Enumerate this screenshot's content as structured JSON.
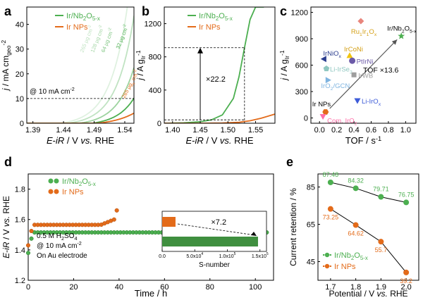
{
  "panel_labels": [
    "a",
    "b",
    "c",
    "d",
    "e"
  ],
  "colors": {
    "green": "#4caf50",
    "orange": "#e36b1a",
    "black": "#000000",
    "purple": "#4b2b8f",
    "gold": "#f1c40f",
    "pink": "#ff6fa8"
  },
  "chart_data": [
    {
      "panel": "a",
      "type": "line",
      "xlabel": "E-iR / V vs. RHE",
      "ylabel": "j / mA cm_geo^-2",
      "xlim": [
        1.38,
        1.555
      ],
      "ylim": [
        0,
        47
      ],
      "xticks": [
        "1.39",
        "1.44",
        "1.49",
        "1.54"
      ],
      "yticks": [
        "0",
        "10",
        "20",
        "30",
        "40"
      ],
      "legend": [
        "Ir/Nb2O5-x",
        "Ir NPs"
      ],
      "annotation": "@ 10 mA cm-2",
      "reference_line_y": 10,
      "curve_labels": [
        "265 µg cm-2",
        "128 µg cm-2",
        "64 µg cm-2",
        "32 µg cm-2",
        "265 µg_Ir cm-2"
      ],
      "series": [
        {
          "name": "Ir/Nb2O5-x",
          "onset": 1.435,
          "tau": 0.0282,
          "shade": 0.18
        },
        {
          "name": "Ir/Nb2O5-x",
          "onset": 1.448,
          "tau": 0.0282,
          "shade": 0.35
        },
        {
          "name": "Ir/Nb2O5-x",
          "onset": 1.466,
          "tau": 0.0282,
          "shade": 0.55
        },
        {
          "name": "Ir/Nb2O5-x",
          "onset": 1.487,
          "tau": 0.0282,
          "shade": 1.0
        },
        {
          "name": "Ir NPs",
          "onset": 1.496,
          "tau": 0.0362
        }
      ]
    },
    {
      "panel": "b",
      "type": "line",
      "xlabel": "E-iR / V vs. RHE",
      "ylabel": "j / A g_Ir^-1",
      "xlim": [
        1.385,
        1.585
      ],
      "ylim": [
        0,
        1400
      ],
      "xticks": [
        "1.40",
        "1.45",
        "1.50",
        "1.55"
      ],
      "yticks": [
        "0",
        "400",
        "800",
        "1200"
      ],
      "legend": [
        "Ir/Nb2O5-x",
        "Ir NPs"
      ],
      "annotation": "×22.2",
      "marker": {
        "x": 1.53,
        "y_low": 41,
        "y_high": 910
      },
      "series": [
        {
          "name": "Ir/Nb2O5-x",
          "x": [
            1.385,
            1.42,
            1.45,
            1.47,
            1.49,
            1.51,
            1.52,
            1.53,
            1.54,
            1.55,
            1.557,
            1.565
          ],
          "y": [
            0,
            5,
            18,
            40,
            100,
            300,
            560,
            910,
            1250,
            1400,
            1400,
            1400
          ]
        },
        {
          "name": "Ir NPs",
          "x": [
            1.385,
            1.45,
            1.49,
            1.52,
            1.54,
            1.56,
            1.585
          ],
          "y": [
            0,
            0,
            3,
            12,
            30,
            60,
            110
          ]
        }
      ]
    },
    {
      "panel": "c",
      "type": "scatter",
      "xlabel": "TOF / s^-1",
      "ylabel": "j / A g_Ir^-1",
      "xlim": [
        -0.1,
        1.12
      ],
      "ylim": [
        -60,
        1260
      ],
      "xticks": [
        "0.0",
        "0.2",
        "0.4",
        "0.6",
        "0.8",
        "1.0"
      ],
      "yticks": [
        "0",
        "300",
        "600",
        "900",
        "1200"
      ],
      "annotation": "TOF ×13.6",
      "points": [
        {
          "label": "Ru1Ir1Ox",
          "x": 0.48,
          "y": 1100,
          "shape": "diamond",
          "color": "#e8857c"
        },
        {
          "label": "Ir/Nb2O5-x",
          "x": 0.95,
          "y": 930,
          "shape": "star",
          "color": "#4caf50"
        },
        {
          "label": "IrCoNi",
          "x": 0.35,
          "y": 710,
          "shape": "triangle-up",
          "color": "#f1c40f"
        },
        {
          "label": "IrNiOx",
          "x": 0.05,
          "y": 670,
          "shape": "triangle-left",
          "color": "#2c3e8f"
        },
        {
          "label": "PtIrNi",
          "x": 0.38,
          "y": 650,
          "shape": "circle",
          "color": "#6c5aa8"
        },
        {
          "label": "Li-IrSe2",
          "x": 0.08,
          "y": 560,
          "shape": "pentagon",
          "color": "#8fc7c0"
        },
        {
          "label": "IrWB",
          "x": 0.4,
          "y": 490,
          "shape": "square",
          "color": "#9e9e9e"
        },
        {
          "label": "IrO2/GCN",
          "x": 0.1,
          "y": 430,
          "shape": "triangle-right",
          "color": "#7fb4e0"
        },
        {
          "label": "Li-IrOx",
          "x": 0.44,
          "y": 195,
          "shape": "triangle-down",
          "color": "#3d5bd8"
        },
        {
          "label": "Ir NPs",
          "x": 0.07,
          "y": 68,
          "shape": "hexagon",
          "color": "#e36b1a"
        },
        {
          "label": "Com. IrO2",
          "x": 0.04,
          "y": 15,
          "shape": "triangle-down",
          "color": "#ff6fa8"
        }
      ]
    },
    {
      "panel": "d",
      "type": "scatter",
      "xlabel": "Time / h",
      "ylabel": "E-iR / V vs. RHE",
      "xlim": [
        0,
        108
      ],
      "ylim": [
        1.2,
        1.9
      ],
      "xticks": [
        "0",
        "20",
        "40",
        "60",
        "80",
        "100"
      ],
      "yticks": [
        "1.2",
        "1.4",
        "1.6",
        "1.8"
      ],
      "legend": [
        "Ir/Nb2O5-x",
        "Ir NPs"
      ],
      "annotation_lines": [
        "0.5 M H2SO4",
        "@ 10 mA cm-2",
        "On Au electrode"
      ],
      "series": [
        {
          "name": "Ir/Nb2O5-x",
          "t_end": 106,
          "start": 1.38,
          "plateau": 1.515
        },
        {
          "name": "Ir NPs",
          "t_end": 39,
          "start": 1.43,
          "plateau": 1.565,
          "end": 1.66
        }
      ],
      "inset": {
        "type": "bar",
        "xlabel": "S-number",
        "xticks": [
          "0.0",
          "5.0x10^4",
          "1.0x10^5",
          "1.5x10^5"
        ],
        "xlim": [
          0,
          160000
        ],
        "bars": [
          {
            "name": "Ir NPs",
            "value": 20500
          },
          {
            "name": "Ir/Nb2O5-x",
            "value": 147000
          }
        ],
        "annotation": "×7.2"
      }
    },
    {
      "panel": "e",
      "type": "line",
      "xlabel": "Potential / V vs. RHE",
      "ylabel": "Current retention / %",
      "xlim": [
        1.65,
        2.05
      ],
      "ylim": [
        35,
        92
      ],
      "xticks": [
        "1.7",
        "1.8",
        "1.9",
        "2.0"
      ],
      "yticks": [
        "45",
        "65",
        "85"
      ],
      "legend": [
        "Ir/Nb2O5-x",
        "Ir NPs"
      ],
      "categories": [
        1.7,
        1.8,
        1.9,
        2.0
      ],
      "series": [
        {
          "name": "Ir/Nb2O5-x",
          "values": [
            87.48,
            84.32,
            79.71,
            76.75
          ],
          "value_labels": [
            "87.48",
            "84.32",
            "79.71",
            "76.75"
          ]
        },
        {
          "name": "Ir NPs",
          "values": [
            73.25,
            64.62,
            55.7,
            39.2
          ],
          "value_labels": [
            "73.25",
            "64.62",
            "55.7",
            "39.2"
          ]
        }
      ]
    }
  ]
}
